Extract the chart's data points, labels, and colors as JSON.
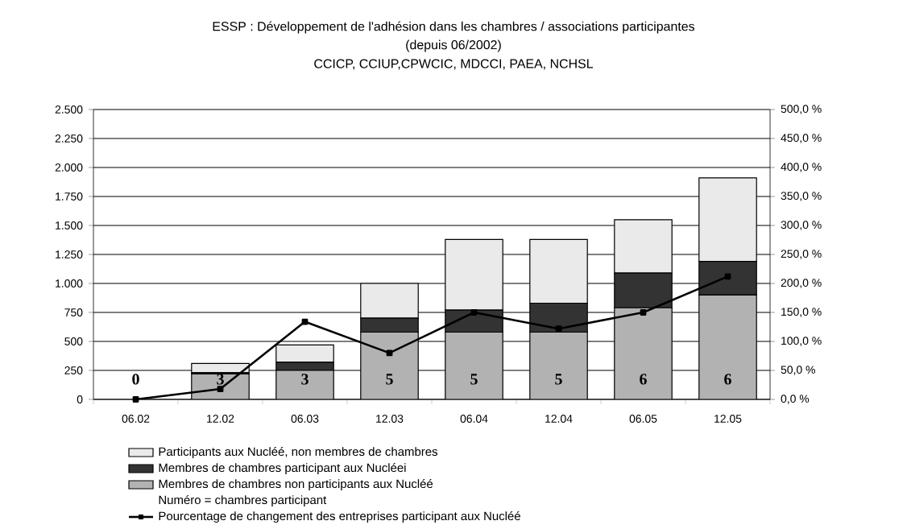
{
  "chart_data": {
    "type": "bar",
    "stacked": true,
    "title": "ESSP : Développement de l'adhésion dans les chambres / associations participantes",
    "subtitle": "(depuis 06/2002)",
    "annotations": [
      "CCICP, CCIUP,CPWCIC, MDCCI, PAEA, NCHSL",
      "Numéro = chambres participant",
      {
        "text": "0",
        "x": "06.02",
        "y": 0
      },
      {
        "text": "3",
        "x": "12.02",
        "y": 0
      },
      {
        "text": "3",
        "x": "06.03",
        "y": 0
      },
      {
        "text": "5",
        "x": "12.03",
        "y": 0
      },
      {
        "text": "5",
        "x": "06.04",
        "y": 0
      },
      {
        "text": "5",
        "x": "12.04",
        "y": 0
      },
      {
        "text": "6",
        "x": "06.05",
        "y": 0
      },
      {
        "text": "6",
        "x": "12.05",
        "y": 0
      }
    ],
    "categories": [
      "06.02",
      "12.02",
      "06.03",
      "12.03",
      "06.04",
      "12.04",
      "06.05",
      "12.05"
    ],
    "series": [
      {
        "name": "Membres de chambres non participants aux Nucléé",
        "color": "#b2b2b2",
        "values": [
          null,
          220,
          250,
          580,
          580,
          580,
          790,
          900
        ]
      },
      {
        "name": "Membres de chambres participant aux Nucléei",
        "color": "#333333",
        "values": [
          null,
          10,
          70,
          120,
          190,
          250,
          300,
          290
        ]
      },
      {
        "name": "Participants aux Nucléé, non membres de chambres",
        "color": "#eaeaea",
        "values": [
          null,
          80,
          150,
          300,
          610,
          550,
          460,
          720
        ]
      },
      {
        "name": "Pourcentage de changement des entreprises participant aux Nucléé",
        "type": "line",
        "axis": "y2",
        "color": "#000000",
        "marker": "square",
        "values": [
          0,
          18,
          134,
          80,
          150,
          122,
          150,
          212
        ]
      }
    ],
    "ylim": [
      0,
      2500
    ],
    "yticks": [
      {
        "value": 0,
        "label": "0"
      },
      {
        "value": 250,
        "label": "250"
      },
      {
        "value": 500,
        "label": "500"
      },
      {
        "value": 750,
        "label": "750"
      },
      {
        "value": 1000,
        "label": "1.000"
      },
      {
        "value": 1250,
        "label": "1.250"
      },
      {
        "value": 1500,
        "label": "1.500"
      },
      {
        "value": 1750,
        "label": "1.750"
      },
      {
        "value": 2000,
        "label": "2.000"
      },
      {
        "value": 2250,
        "label": "2.250"
      },
      {
        "value": 2500,
        "label": "2.500"
      }
    ],
    "y2lim": [
      0,
      500
    ],
    "y2ticks": [
      {
        "value": 0,
        "label": "0,0 %"
      },
      {
        "value": 50,
        "label": "50,0 %"
      },
      {
        "value": 100,
        "label": "100,0 %"
      },
      {
        "value": 150,
        "label": "150,0 %"
      },
      {
        "value": 200,
        "label": "200,0 %"
      },
      {
        "value": 250,
        "label": "250,0 %"
      },
      {
        "value": 300,
        "label": "300,0 %"
      },
      {
        "value": 350,
        "label": "350,0 %"
      },
      {
        "value": 400,
        "label": "400,0 %"
      },
      {
        "value": 450,
        "label": "450,0 %"
      },
      {
        "value": 500,
        "label": "500,0 %"
      }
    ],
    "grid": "y",
    "legend": "bottom"
  }
}
